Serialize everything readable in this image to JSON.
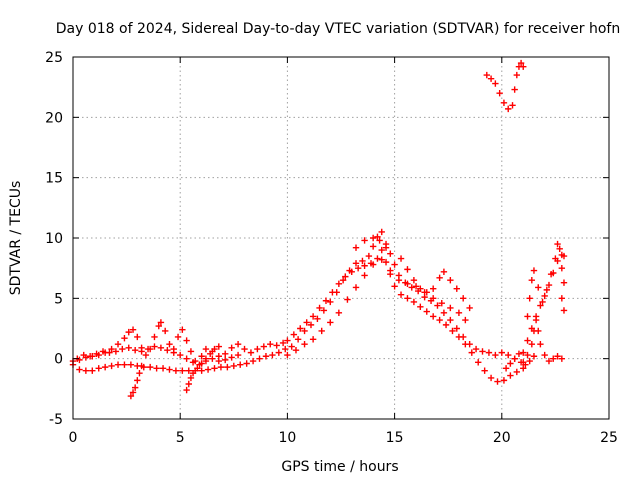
{
  "chart_data": {
    "type": "scatter",
    "title": "Day 018 of 2024, Sidereal Day-to-day VTEC variation (SDTVAR) for receiver hofn",
    "xlabel": "GPS time / hours",
    "ylabel": "SDTVAR / TECUs",
    "xlim": [
      0,
      25
    ],
    "ylim": [
      -5,
      25
    ],
    "xticks": [
      0,
      5,
      10,
      15,
      20,
      25
    ],
    "yticks": [
      -5,
      0,
      5,
      10,
      15,
      20,
      25
    ],
    "grid": true,
    "marker": "+",
    "color": "#ff0000",
    "series": [
      {
        "name": "SDTVAR",
        "points": [
          [
            0.0,
            -0.5
          ],
          [
            0.3,
            -0.9
          ],
          [
            0.6,
            -1.0
          ],
          [
            0.9,
            -1.0
          ],
          [
            1.2,
            -0.8
          ],
          [
            1.5,
            -0.7
          ],
          [
            1.8,
            -0.6
          ],
          [
            2.1,
            -0.5
          ],
          [
            2.4,
            -0.5
          ],
          [
            2.7,
            -0.5
          ],
          [
            3.0,
            -0.6
          ],
          [
            3.3,
            -0.7
          ],
          [
            3.6,
            -0.7
          ],
          [
            3.9,
            -0.8
          ],
          [
            4.2,
            -0.8
          ],
          [
            4.5,
            -0.9
          ],
          [
            4.8,
            -1.0
          ],
          [
            5.1,
            -1.0
          ],
          [
            5.4,
            -1.0
          ],
          [
            5.7,
            -1.0
          ],
          [
            6.0,
            -1.0
          ],
          [
            6.3,
            -0.9
          ],
          [
            6.6,
            -0.8
          ],
          [
            6.9,
            -0.7
          ],
          [
            7.2,
            -0.7
          ],
          [
            7.5,
            -0.6
          ],
          [
            7.8,
            -0.5
          ],
          [
            8.1,
            -0.4
          ],
          [
            8.4,
            -0.2
          ],
          [
            8.7,
            0.0
          ],
          [
            9.0,
            0.2
          ],
          [
            9.3,
            0.3
          ],
          [
            9.6,
            0.5
          ],
          [
            9.9,
            0.8
          ],
          [
            0.0,
            -0.2
          ],
          [
            0.3,
            -0.1
          ],
          [
            0.6,
            0.1
          ],
          [
            0.9,
            0.2
          ],
          [
            1.2,
            0.3
          ],
          [
            1.5,
            0.5
          ],
          [
            1.8,
            0.8
          ],
          [
            2.1,
            1.2
          ],
          [
            2.4,
            1.7
          ],
          [
            2.6,
            2.2
          ],
          [
            2.8,
            2.4
          ],
          [
            3.0,
            1.8
          ],
          [
            3.2,
            0.9
          ],
          [
            3.4,
            0.3
          ],
          [
            3.6,
            0.8
          ],
          [
            3.8,
            1.8
          ],
          [
            4.0,
            2.7
          ],
          [
            4.1,
            3.0
          ],
          [
            4.3,
            2.3
          ],
          [
            4.5,
            1.2
          ],
          [
            4.7,
            0.8
          ],
          [
            4.9,
            1.8
          ],
          [
            5.1,
            2.4
          ],
          [
            5.3,
            1.5
          ],
          [
            5.5,
            0.6
          ],
          [
            5.7,
            -0.2
          ],
          [
            6.0,
            0.2
          ],
          [
            6.2,
            0.8
          ],
          [
            6.5,
            0.6
          ],
          [
            6.8,
            0.2
          ],
          [
            7.1,
            0.4
          ],
          [
            7.4,
            0.9
          ],
          [
            7.7,
            1.2
          ],
          [
            8.0,
            0.8
          ],
          [
            8.3,
            0.5
          ],
          [
            8.6,
            0.8
          ],
          [
            8.9,
            1.0
          ],
          [
            9.2,
            1.2
          ],
          [
            9.5,
            1.1
          ],
          [
            9.8,
            1.3
          ],
          [
            0.2,
            0.0
          ],
          [
            0.5,
            0.3
          ],
          [
            0.8,
            0.2
          ],
          [
            1.1,
            0.4
          ],
          [
            1.4,
            0.6
          ],
          [
            1.7,
            0.5
          ],
          [
            2.0,
            0.6
          ],
          [
            2.3,
            0.8
          ],
          [
            2.6,
            0.9
          ],
          [
            2.9,
            0.7
          ],
          [
            3.2,
            0.6
          ],
          [
            3.5,
            0.8
          ],
          [
            3.8,
            1.0
          ],
          [
            4.1,
            0.9
          ],
          [
            4.4,
            0.7
          ],
          [
            4.7,
            0.5
          ],
          [
            5.0,
            0.3
          ],
          [
            5.3,
            0.0
          ],
          [
            5.6,
            -0.3
          ],
          [
            5.9,
            -0.5
          ],
          [
            6.2,
            -0.2
          ],
          [
            6.5,
            0.0
          ],
          [
            6.8,
            -0.2
          ],
          [
            7.1,
            -0.1
          ],
          [
            7.4,
            0.1
          ],
          [
            7.7,
            0.3
          ],
          [
            2.7,
            -3.1
          ],
          [
            2.8,
            -2.8
          ],
          [
            2.9,
            -2.4
          ],
          [
            3.0,
            -1.8
          ],
          [
            3.1,
            -1.2
          ],
          [
            3.2,
            -0.6
          ],
          [
            5.3,
            -2.6
          ],
          [
            5.4,
            -2.1
          ],
          [
            5.5,
            -1.6
          ],
          [
            5.6,
            -1.2
          ],
          [
            5.8,
            -0.8
          ],
          [
            6.0,
            -0.4
          ],
          [
            6.2,
            0.0
          ],
          [
            6.4,
            0.4
          ],
          [
            6.6,
            0.8
          ],
          [
            6.8,
            1.0
          ],
          [
            10.0,
            1.5
          ],
          [
            10.3,
            2.0
          ],
          [
            10.6,
            2.5
          ],
          [
            10.9,
            3.0
          ],
          [
            11.2,
            3.5
          ],
          [
            11.5,
            4.2
          ],
          [
            11.8,
            4.8
          ],
          [
            12.1,
            5.5
          ],
          [
            12.4,
            6.2
          ],
          [
            12.7,
            6.8
          ],
          [
            13.0,
            7.2
          ],
          [
            13.3,
            7.5
          ],
          [
            13.6,
            7.7
          ],
          [
            13.9,
            7.9
          ],
          [
            14.2,
            8.3
          ],
          [
            14.4,
            9.0
          ],
          [
            14.6,
            8.0
          ],
          [
            14.8,
            7.0
          ],
          [
            15.0,
            6.0
          ],
          [
            15.3,
            5.3
          ],
          [
            15.6,
            5.0
          ],
          [
            15.9,
            4.7
          ],
          [
            16.2,
            4.3
          ],
          [
            16.5,
            3.9
          ],
          [
            16.8,
            3.5
          ],
          [
            17.1,
            3.2
          ],
          [
            17.4,
            2.8
          ],
          [
            17.7,
            2.3
          ],
          [
            18.0,
            1.8
          ],
          [
            18.3,
            1.2
          ],
          [
            18.6,
            0.5
          ],
          [
            18.9,
            -0.3
          ],
          [
            19.2,
            -1.0
          ],
          [
            19.5,
            -1.6
          ],
          [
            19.8,
            -1.9
          ],
          [
            20.1,
            -1.8
          ],
          [
            20.4,
            -1.4
          ],
          [
            20.7,
            -1.1
          ],
          [
            21.0,
            -0.8
          ],
          [
            10.2,
            1.0
          ],
          [
            10.5,
            1.6
          ],
          [
            10.8,
            2.3
          ],
          [
            11.1,
            2.8
          ],
          [
            11.4,
            3.3
          ],
          [
            11.7,
            4.0
          ],
          [
            12.0,
            4.7
          ],
          [
            12.3,
            5.5
          ],
          [
            12.6,
            6.5
          ],
          [
            12.9,
            7.3
          ],
          [
            13.2,
            7.9
          ],
          [
            13.5,
            8.1
          ],
          [
            13.8,
            8.5
          ],
          [
            14.0,
            9.3
          ],
          [
            14.2,
            10.1
          ],
          [
            14.4,
            10.5
          ],
          [
            14.6,
            9.5
          ],
          [
            14.8,
            8.7
          ],
          [
            15.0,
            7.8
          ],
          [
            15.2,
            6.9
          ],
          [
            15.5,
            6.3
          ],
          [
            15.8,
            5.9
          ],
          [
            16.1,
            5.6
          ],
          [
            16.4,
            5.1
          ],
          [
            16.7,
            4.8
          ],
          [
            17.0,
            4.4
          ],
          [
            17.3,
            3.8
          ],
          [
            17.6,
            3.2
          ],
          [
            17.9,
            2.5
          ],
          [
            18.2,
            1.8
          ],
          [
            18.5,
            1.2
          ],
          [
            18.8,
            0.8
          ],
          [
            19.1,
            0.6
          ],
          [
            19.4,
            0.5
          ],
          [
            19.7,
            0.3
          ],
          [
            10.0,
            0.3
          ],
          [
            10.4,
            0.7
          ],
          [
            10.8,
            1.2
          ],
          [
            11.2,
            1.6
          ],
          [
            11.6,
            2.3
          ],
          [
            12.0,
            3.0
          ],
          [
            12.4,
            3.8
          ],
          [
            12.8,
            4.9
          ],
          [
            13.2,
            5.9
          ],
          [
            13.6,
            6.9
          ],
          [
            14.0,
            7.8
          ],
          [
            14.4,
            8.2
          ],
          [
            14.8,
            7.3
          ],
          [
            15.2,
            6.5
          ],
          [
            15.6,
            6.2
          ],
          [
            16.0,
            6.0
          ],
          [
            16.4,
            5.5
          ],
          [
            16.8,
            5.0
          ],
          [
            17.2,
            4.6
          ],
          [
            17.6,
            4.2
          ],
          [
            18.0,
            3.8
          ],
          [
            18.3,
            3.2
          ],
          [
            15.3,
            8.3
          ],
          [
            15.6,
            7.4
          ],
          [
            15.9,
            6.5
          ],
          [
            16.2,
            5.8
          ],
          [
            16.5,
            5.5
          ],
          [
            16.8,
            5.8
          ],
          [
            17.1,
            6.7
          ],
          [
            17.3,
            7.2
          ],
          [
            17.6,
            6.5
          ],
          [
            17.9,
            5.8
          ],
          [
            18.2,
            5.0
          ],
          [
            18.5,
            4.2
          ],
          [
            13.2,
            9.2
          ],
          [
            13.6,
            9.8
          ],
          [
            14.0,
            10.0
          ],
          [
            14.3,
            9.8
          ],
          [
            14.6,
            9.2
          ],
          [
            19.3,
            23.5
          ],
          [
            19.5,
            23.2
          ],
          [
            19.7,
            22.8
          ],
          [
            19.9,
            22.0
          ],
          [
            20.1,
            21.2
          ],
          [
            20.3,
            20.7
          ],
          [
            20.5,
            21.0
          ],
          [
            20.6,
            22.3
          ],
          [
            20.7,
            23.5
          ],
          [
            20.8,
            24.2
          ],
          [
            20.9,
            24.5
          ],
          [
            21.0,
            24.2
          ],
          [
            20.2,
            -0.8
          ],
          [
            20.4,
            -0.4
          ],
          [
            20.6,
            0.0
          ],
          [
            20.8,
            0.4
          ],
          [
            21.0,
            -0.3
          ],
          [
            21.2,
            0.3
          ],
          [
            21.4,
            1.2
          ],
          [
            21.5,
            2.3
          ],
          [
            21.6,
            3.2
          ],
          [
            21.7,
            2.3
          ],
          [
            21.8,
            1.2
          ],
          [
            22.0,
            0.3
          ],
          [
            22.2,
            -0.2
          ],
          [
            22.4,
            0.0
          ],
          [
            22.6,
            0.2
          ],
          [
            22.8,
            0.0
          ],
          [
            21.2,
            3.5
          ],
          [
            21.3,
            5.0
          ],
          [
            21.4,
            6.5
          ],
          [
            21.5,
            7.3
          ],
          [
            21.7,
            5.9
          ],
          [
            21.9,
            4.7
          ],
          [
            22.1,
            5.7
          ],
          [
            22.3,
            7.0
          ],
          [
            22.5,
            8.3
          ],
          [
            22.6,
            9.5
          ],
          [
            22.7,
            9.1
          ],
          [
            22.8,
            7.5
          ],
          [
            22.9,
            6.3
          ],
          [
            22.8,
            5.0
          ],
          [
            22.9,
            4.0
          ],
          [
            22.9,
            8.5
          ],
          [
            21.0,
            0.5
          ],
          [
            21.2,
            1.5
          ],
          [
            21.4,
            2.5
          ],
          [
            21.6,
            3.5
          ],
          [
            21.8,
            4.4
          ],
          [
            22.0,
            5.2
          ],
          [
            22.2,
            6.1
          ],
          [
            22.4,
            7.1
          ],
          [
            22.6,
            8.1
          ],
          [
            22.8,
            8.6
          ],
          [
            20.0,
            0.5
          ],
          [
            20.3,
            0.3
          ],
          [
            20.6,
            0.0
          ],
          [
            20.9,
            -0.3
          ],
          [
            21.1,
            -0.5
          ],
          [
            21.3,
            -0.2
          ],
          [
            21.5,
            0.2
          ]
        ]
      }
    ]
  }
}
